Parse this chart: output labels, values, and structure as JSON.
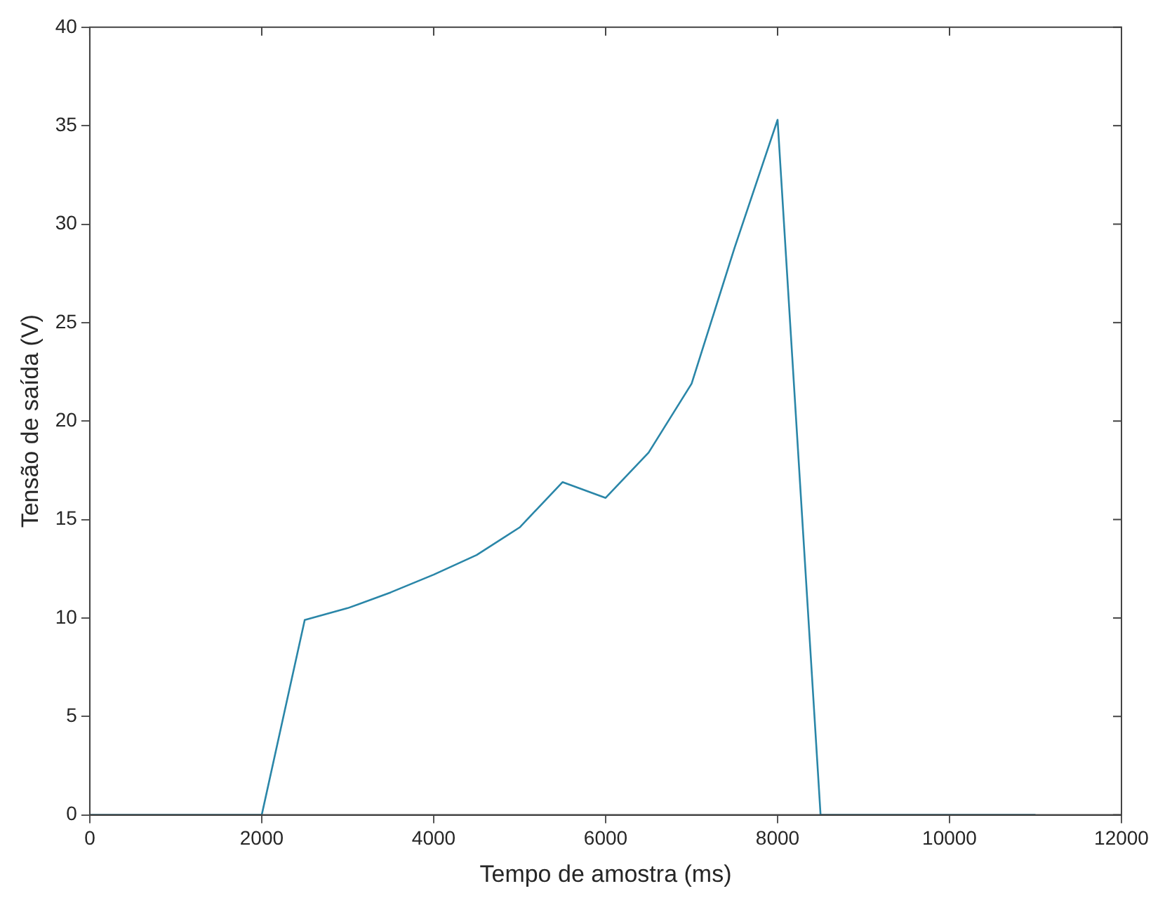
{
  "chart_data": {
    "type": "line",
    "xlabel": "Tempo de amostra (ms)",
    "ylabel": "Tensão de saída (V)",
    "x": [
      0,
      2000,
      2500,
      3000,
      3500,
      4000,
      4500,
      5000,
      5500,
      6000,
      6500,
      7000,
      7500,
      8000,
      8500,
      11000
    ],
    "series": [
      {
        "color": "#2a86a8",
        "values": [
          0,
          0,
          9.9,
          10.5,
          11.3,
          12.2,
          13.2,
          14.6,
          16.9,
          16.1,
          18.4,
          21.9,
          28.8,
          35.3,
          0,
          0
        ]
      }
    ],
    "xlim": [
      0,
      12000
    ],
    "xticks": [
      0,
      2000,
      4000,
      6000,
      8000,
      10000,
      12000
    ],
    "ylim": [
      0,
      40
    ],
    "yticks": [
      0,
      5,
      10,
      15,
      20,
      25,
      30,
      35,
      40
    ],
    "grid": false,
    "legend": false,
    "marker": "none",
    "line_style": "solid"
  }
}
